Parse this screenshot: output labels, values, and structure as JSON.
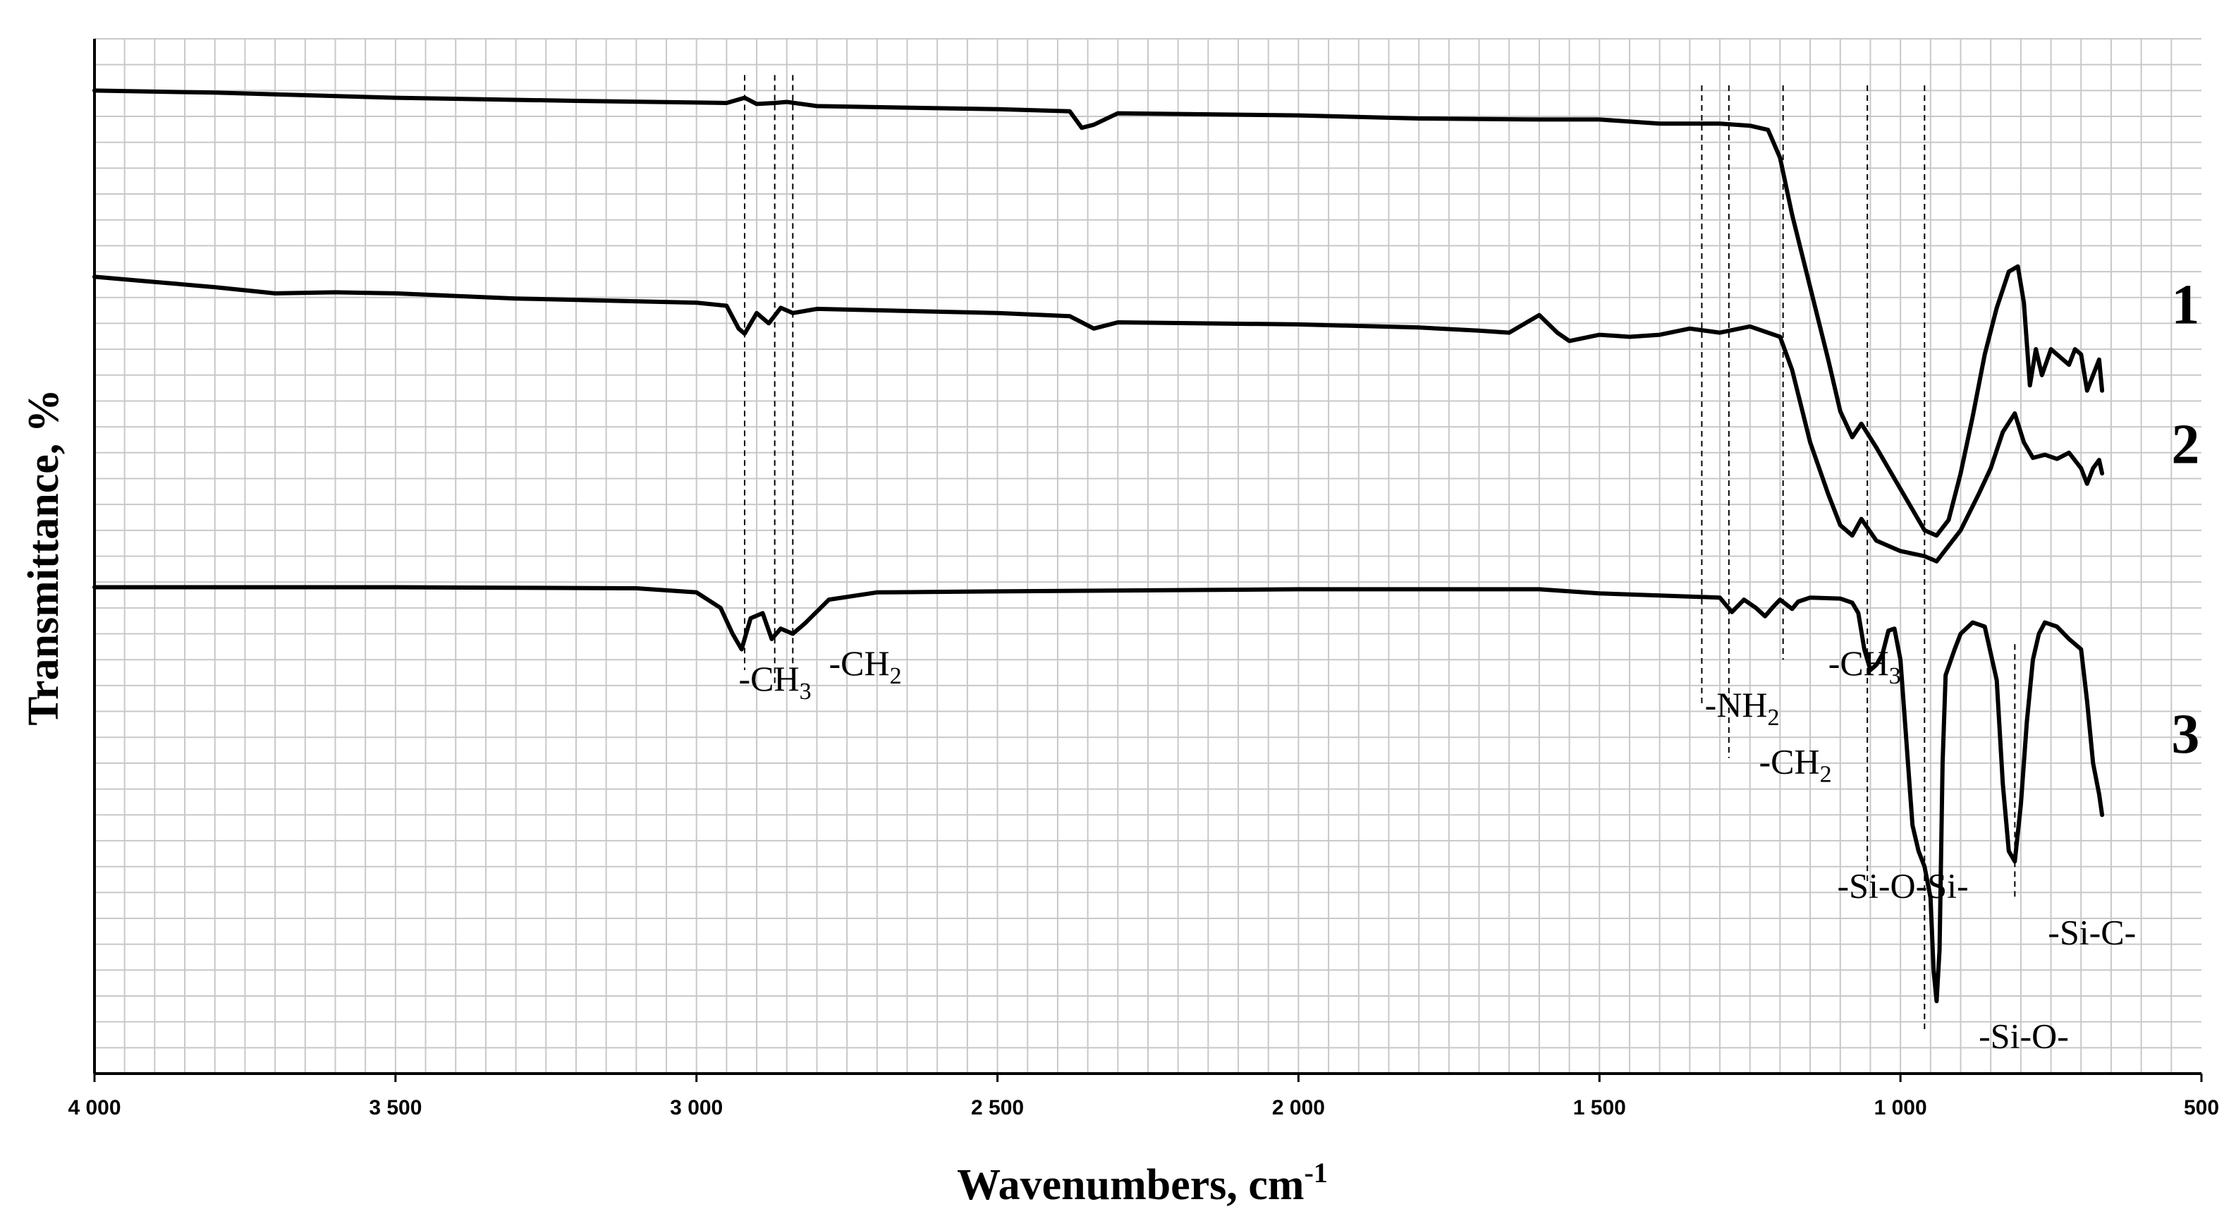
{
  "chart_data": {
    "type": "line",
    "title": "",
    "xlabel": "Wavenumbers, cm",
    "xlabel_sup": "-1",
    "ylabel": "Transmittance, %",
    "xlim": [
      4000,
      500
    ],
    "ylim": [
      0,
      100
    ],
    "grid": true,
    "x_ticks": [
      4000,
      3500,
      3000,
      2500,
      2000,
      1500,
      1000,
      500
    ],
    "x_tick_labels": [
      "4 000",
      "3 500",
      "3 000",
      "2 500",
      "2 000",
      "1 500",
      "1 000",
      "500"
    ],
    "series": [
      {
        "name": "1",
        "points": [
          [
            4000,
            95.0
          ],
          [
            3800,
            94.8
          ],
          [
            3500,
            94.3
          ],
          [
            3200,
            94.0
          ],
          [
            2950,
            93.8
          ],
          [
            2920,
            94.3
          ],
          [
            2900,
            93.7
          ],
          [
            2870,
            93.8
          ],
          [
            2850,
            93.9
          ],
          [
            2800,
            93.5
          ],
          [
            2500,
            93.2
          ],
          [
            2380,
            93.0
          ],
          [
            2360,
            91.4
          ],
          [
            2340,
            91.7
          ],
          [
            2300,
            92.8
          ],
          [
            2000,
            92.6
          ],
          [
            1800,
            92.3
          ],
          [
            1600,
            92.2
          ],
          [
            1500,
            92.2
          ],
          [
            1400,
            91.8
          ],
          [
            1300,
            91.8
          ],
          [
            1250,
            91.6
          ],
          [
            1220,
            91.2
          ],
          [
            1200,
            88.5
          ],
          [
            1180,
            83.0
          ],
          [
            1150,
            76.0
          ],
          [
            1120,
            69.0
          ],
          [
            1100,
            64.0
          ],
          [
            1080,
            61.5
          ],
          [
            1065,
            62.8
          ],
          [
            1040,
            60.5
          ],
          [
            1000,
            56.5
          ],
          [
            960,
            52.5
          ],
          [
            940,
            52.0
          ],
          [
            920,
            53.5
          ],
          [
            900,
            58.0
          ],
          [
            880,
            63.5
          ],
          [
            860,
            69.5
          ],
          [
            840,
            74.0
          ],
          [
            820,
            77.5
          ],
          [
            805,
            78.0
          ],
          [
            795,
            74.5
          ],
          [
            785,
            66.5
          ],
          [
            775,
            70.0
          ],
          [
            765,
            67.5
          ],
          [
            750,
            70.0
          ],
          [
            720,
            68.5
          ],
          [
            710,
            70.0
          ],
          [
            700,
            69.5
          ],
          [
            690,
            66.0
          ],
          [
            680,
            67.5
          ],
          [
            670,
            69.0
          ],
          [
            665,
            66.0
          ]
        ]
      },
      {
        "name": "2",
        "points": [
          [
            4000,
            77.0
          ],
          [
            3900,
            76.5
          ],
          [
            3800,
            76.0
          ],
          [
            3700,
            75.4
          ],
          [
            3600,
            75.5
          ],
          [
            3500,
            75.4
          ],
          [
            3300,
            74.9
          ],
          [
            3000,
            74.5
          ],
          [
            2950,
            74.2
          ],
          [
            2930,
            72.0
          ],
          [
            2920,
            71.5
          ],
          [
            2900,
            73.5
          ],
          [
            2880,
            72.5
          ],
          [
            2860,
            74.0
          ],
          [
            2840,
            73.5
          ],
          [
            2800,
            73.9
          ],
          [
            2500,
            73.5
          ],
          [
            2380,
            73.2
          ],
          [
            2340,
            72.0
          ],
          [
            2300,
            72.6
          ],
          [
            2000,
            72.4
          ],
          [
            1800,
            72.1
          ],
          [
            1700,
            71.8
          ],
          [
            1650,
            71.6
          ],
          [
            1600,
            73.3
          ],
          [
            1570,
            71.6
          ],
          [
            1550,
            70.8
          ],
          [
            1500,
            71.4
          ],
          [
            1450,
            71.2
          ],
          [
            1400,
            71.4
          ],
          [
            1350,
            72.0
          ],
          [
            1300,
            71.6
          ],
          [
            1250,
            72.2
          ],
          [
            1200,
            71.2
          ],
          [
            1180,
            68.0
          ],
          [
            1150,
            61.0
          ],
          [
            1120,
            56.0
          ],
          [
            1100,
            53.0
          ],
          [
            1080,
            52.0
          ],
          [
            1065,
            53.6
          ],
          [
            1040,
            51.5
          ],
          [
            1000,
            50.5
          ],
          [
            960,
            50.0
          ],
          [
            940,
            49.5
          ],
          [
            900,
            52.5
          ],
          [
            870,
            56.0
          ],
          [
            850,
            58.5
          ],
          [
            830,
            62.0
          ],
          [
            810,
            63.8
          ],
          [
            795,
            61.0
          ],
          [
            780,
            59.5
          ],
          [
            760,
            59.8
          ],
          [
            740,
            59.4
          ],
          [
            720,
            60.0
          ],
          [
            700,
            58.5
          ],
          [
            690,
            57.0
          ],
          [
            680,
            58.5
          ],
          [
            670,
            59.3
          ],
          [
            665,
            58.0
          ]
        ]
      },
      {
        "name": "3",
        "points": [
          [
            4000,
            47.0
          ],
          [
            3500,
            47.0
          ],
          [
            3100,
            46.9
          ],
          [
            3000,
            46.5
          ],
          [
            2960,
            45.0
          ],
          [
            2940,
            42.5
          ],
          [
            2925,
            41.0
          ],
          [
            2910,
            44.0
          ],
          [
            2890,
            44.5
          ],
          [
            2875,
            42.0
          ],
          [
            2860,
            43.0
          ],
          [
            2840,
            42.5
          ],
          [
            2820,
            43.5
          ],
          [
            2780,
            45.8
          ],
          [
            2700,
            46.5
          ],
          [
            2500,
            46.6
          ],
          [
            2000,
            46.8
          ],
          [
            1600,
            46.8
          ],
          [
            1500,
            46.4
          ],
          [
            1400,
            46.2
          ],
          [
            1300,
            46.0
          ],
          [
            1280,
            44.6
          ],
          [
            1260,
            45.8
          ],
          [
            1240,
            45.0
          ],
          [
            1225,
            44.2
          ],
          [
            1210,
            45.2
          ],
          [
            1200,
            45.8
          ],
          [
            1180,
            44.9
          ],
          [
            1170,
            45.6
          ],
          [
            1150,
            46.0
          ],
          [
            1100,
            45.9
          ],
          [
            1080,
            45.5
          ],
          [
            1070,
            44.5
          ],
          [
            1060,
            41.0
          ],
          [
            1050,
            39.0
          ],
          [
            1040,
            39.5
          ],
          [
            1030,
            40.5
          ],
          [
            1020,
            42.8
          ],
          [
            1010,
            43.0
          ],
          [
            1000,
            40.0
          ],
          [
            990,
            32.0
          ],
          [
            980,
            24.0
          ],
          [
            970,
            21.5
          ],
          [
            960,
            20.0
          ],
          [
            950,
            17.0
          ],
          [
            945,
            10.0
          ],
          [
            940,
            7.0
          ],
          [
            935,
            12.0
          ],
          [
            930,
            30.0
          ],
          [
            925,
            38.5
          ],
          [
            910,
            41.0
          ],
          [
            900,
            42.5
          ],
          [
            880,
            43.6
          ],
          [
            860,
            43.2
          ],
          [
            840,
            38.0
          ],
          [
            830,
            28.0
          ],
          [
            820,
            21.5
          ],
          [
            810,
            20.5
          ],
          [
            800,
            26.0
          ],
          [
            790,
            34.0
          ],
          [
            780,
            40.0
          ],
          [
            770,
            42.5
          ],
          [
            760,
            43.6
          ],
          [
            740,
            43.2
          ],
          [
            720,
            42.0
          ],
          [
            700,
            41.0
          ],
          [
            690,
            36.0
          ],
          [
            680,
            30.0
          ],
          [
            670,
            27.0
          ],
          [
            665,
            25.0
          ]
        ]
      }
    ],
    "marker_lines": [
      {
        "x": 2920,
        "y_top": 96.5,
        "y_bottom": 39.0
      },
      {
        "x": 2870,
        "y_top": 96.5,
        "y_bottom": 37.5
      },
      {
        "x": 2840,
        "y_top": 96.5,
        "y_bottom": 38.0
      },
      {
        "x": 1330,
        "y_top": 95.5,
        "y_bottom": 35.5
      },
      {
        "x": 1285,
        "y_top": 95.5,
        "y_bottom": 30.5
      },
      {
        "x": 1195,
        "y_top": 95.5,
        "y_bottom": 40.0
      },
      {
        "x": 1055,
        "y_top": 95.5,
        "y_bottom": 18.5
      },
      {
        "x": 960,
        "y_top": 95.5,
        "y_bottom": 4.0
      },
      {
        "x": 810,
        "y_top": 41.5,
        "y_bottom": 17.0
      }
    ],
    "annotations": [
      {
        "text": "-CH",
        "sub": "3",
        "x": 2930,
        "y": 37.0
      },
      {
        "text": "-CH",
        "sub": "2",
        "x": 2780,
        "y": 38.5
      },
      {
        "text": "-NH",
        "sub": "2",
        "x": 1325,
        "y": 34.5
      },
      {
        "text": "-CH",
        "sub": "2",
        "x": 1235,
        "y": 29.0
      },
      {
        "text": "-CH",
        "sub": "3",
        "x": 1120,
        "y": 38.5
      },
      {
        "text": "-Si-O-Si-",
        "sub": "",
        "x": 1105,
        "y": 17.0
      },
      {
        "text": "-Si-C-",
        "sub": "",
        "x": 755,
        "y": 12.5
      },
      {
        "text": "-Si-O-",
        "sub": "",
        "x": 870,
        "y": 2.5
      }
    ],
    "series_labels": [
      {
        "text": "1",
        "x": 550,
        "y": 72.5
      },
      {
        "text": "2",
        "x": 550,
        "y": 59.0
      },
      {
        "text": "3",
        "x": 550,
        "y": 31.0
      }
    ]
  }
}
